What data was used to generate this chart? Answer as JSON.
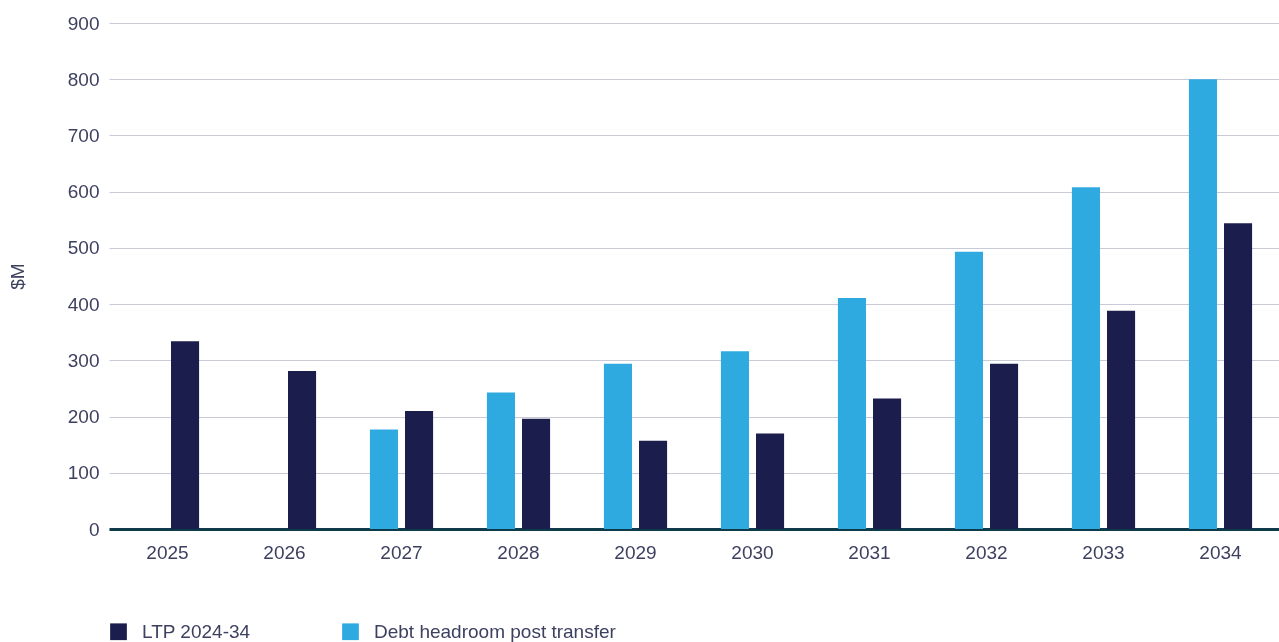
{
  "chart_data": {
    "type": "bar",
    "ylabel": "$M",
    "categories": [
      "2025",
      "2026",
      "2027",
      "2028",
      "2029",
      "2030",
      "2031",
      "2032",
      "2033",
      "2034"
    ],
    "series": [
      {
        "name": "Debt headroom post transfer",
        "color": "#2eaae1",
        "values": [
          null,
          null,
          177,
          243,
          294,
          316,
          411,
          493,
          608,
          800
        ]
      },
      {
        "name": "LTP 2024-34",
        "color": "#1b1d4c",
        "values": [
          334,
          281,
          210,
          196,
          157,
          170,
          232,
          294,
          388,
          544
        ]
      }
    ],
    "ylim": [
      0,
      900
    ],
    "yticks": [
      0,
      100,
      200,
      300,
      400,
      500,
      600,
      700,
      800,
      900
    ],
    "grid": "y",
    "legend": "bottom"
  }
}
